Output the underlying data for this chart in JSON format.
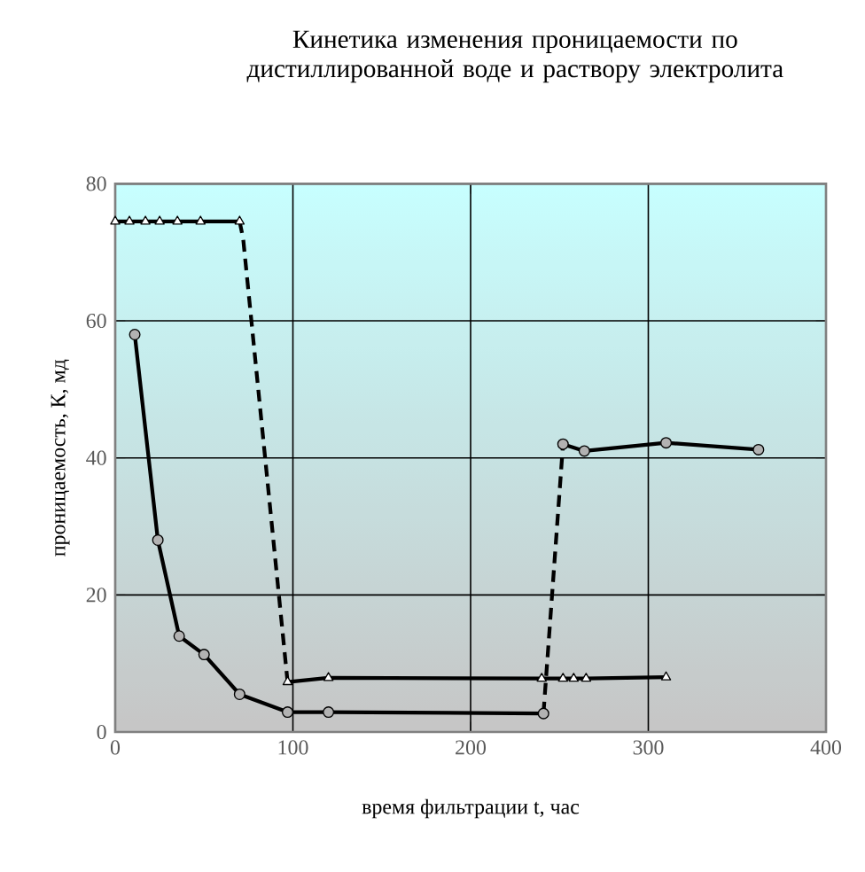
{
  "chart_data": {
    "type": "line",
    "title": "Кинетика  изменения проницаемости  по дистиллированной воде и раствору электролита",
    "xlabel": "время фильтрации  t, час",
    "ylabel": "проницаемость, К, мд",
    "xlim": [
      0,
      400
    ],
    "xticks": [
      0,
      100,
      200,
      300,
      400
    ],
    "ylim": [
      0,
      80
    ],
    "yticks": [
      0,
      20,
      40,
      60,
      80
    ],
    "grid": true,
    "series": [
      {
        "color": "#000000",
        "marker": "triangle",
        "line_style": "solid",
        "x": [
          0,
          8,
          17,
          25,
          35,
          48,
          70
        ],
        "values": [
          74.5,
          74.5,
          74.5,
          74.5,
          74.5,
          74.5,
          74.5
        ]
      },
      {
        "color": "#000000",
        "line_style": "dashed",
        "x": [
          70,
          72,
          97
        ],
        "values": [
          74.5,
          72,
          7.3
        ]
      },
      {
        "color": "#000000",
        "marker": "triangle",
        "line_style": "solid",
        "x": [
          97,
          120,
          240,
          252,
          258,
          265,
          310
        ],
        "values": [
          7.3,
          7.9,
          7.8,
          7.8,
          7.8,
          7.8,
          8
        ]
      },
      {
        "color": "#000000",
        "marker": "circle",
        "line_style": "solid",
        "x": [
          11,
          24,
          36,
          50,
          70,
          97,
          120,
          241
        ],
        "values": [
          58,
          28,
          14,
          11.3,
          5.5,
          2.9,
          2.9,
          2.7
        ]
      },
      {
        "color": "#000000",
        "line_style": "dashed",
        "x": [
          241,
          252
        ],
        "values": [
          2.7,
          42
        ]
      },
      {
        "color": "#000000",
        "marker": "circle",
        "line_style": "solid",
        "x": [
          252,
          264,
          310,
          362
        ],
        "values": [
          42,
          41,
          42.2,
          41.2
        ]
      }
    ]
  }
}
